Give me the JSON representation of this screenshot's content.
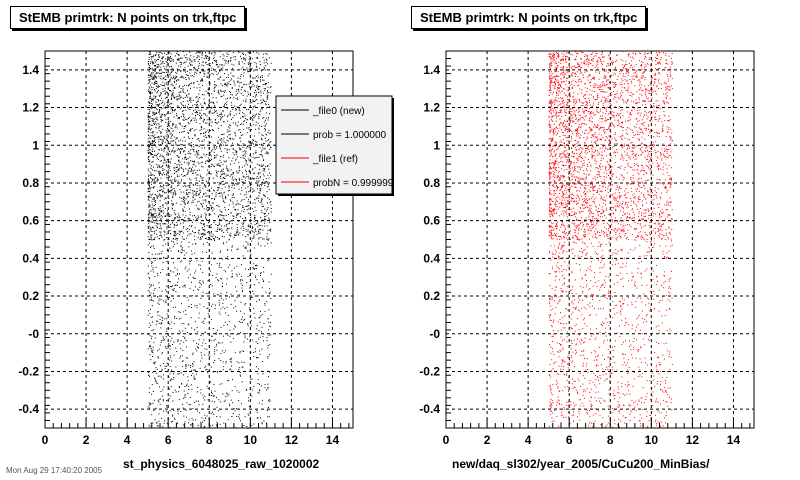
{
  "chart_data": [
    {
      "type": "scatter",
      "title": "StEMB primtrk: N points on trk,ftpc",
      "xlabel": "st_physics_6048025_raw_1020002",
      "ylabel": "",
      "xlim": [
        0,
        15
      ],
      "ylim": [
        -0.5,
        1.5
      ],
      "x_ticks": [
        "0",
        "2",
        "4",
        "6",
        "8",
        "10",
        "12",
        "14"
      ],
      "y_ticks": [
        "-0.4",
        "-0.2",
        "-0",
        "0.2",
        "0.4",
        "0.6",
        "0.8",
        "1",
        "1.2",
        "1.4"
      ],
      "grid": true,
      "marker_color": "#000000",
      "x_band": [
        5.0,
        11.0
      ],
      "dense_y_band": [
        0.5,
        1.5
      ],
      "legend": {
        "placement": "top-right",
        "entries": [
          {
            "label": "_file0 (new)",
            "color": "#000000"
          },
          {
            "label": "prob = 1.000000",
            "color": "#000000"
          },
          {
            "label": "_file1 (ref)",
            "color": "#ff0000"
          },
          {
            "label": "probN = 0.999999",
            "color": "#ff0000"
          }
        ]
      }
    },
    {
      "type": "scatter",
      "title": "StEMB primtrk: N points on trk,ftpc",
      "xlabel": "new/daq_sl302/year_2005/CuCu200_MinBias/",
      "ylabel": "",
      "xlim": [
        0,
        15
      ],
      "ylim": [
        -0.5,
        1.5
      ],
      "x_ticks": [
        "0",
        "2",
        "4",
        "6",
        "8",
        "10",
        "12",
        "14"
      ],
      "y_ticks": [
        "-0.4",
        "-0.2",
        "-0",
        "0.2",
        "0.4",
        "0.6",
        "0.8",
        "1",
        "1.2",
        "1.4"
      ],
      "grid": true,
      "marker_color": "#ff0000",
      "x_band": [
        5.0,
        11.0
      ],
      "dense_y_band": [
        0.5,
        1.5
      ]
    }
  ],
  "footer": "Mon Aug 29 17:40:20 2005"
}
